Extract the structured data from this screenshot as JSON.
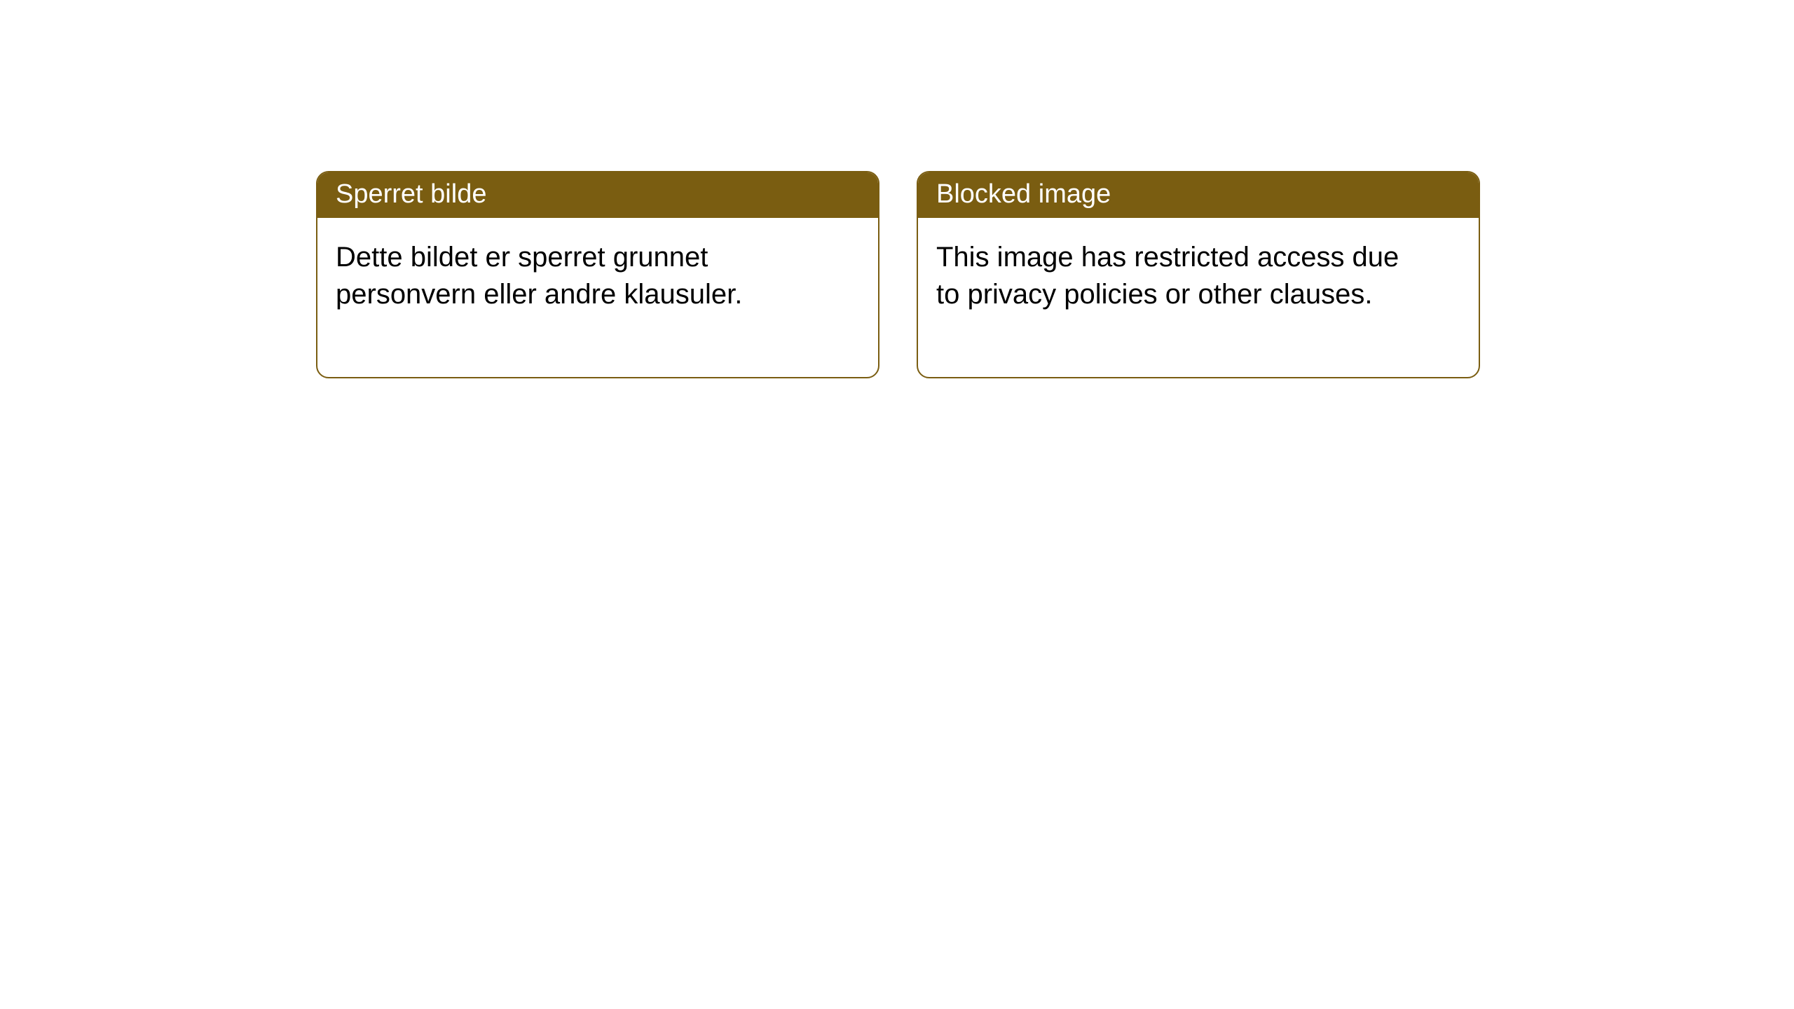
{
  "styling": {
    "header_bg": "#7a5d11",
    "header_text_color": "#ffffff",
    "border_color": "#7a5d11",
    "border_width": 2,
    "border_radius": 18,
    "card_bg": "#ffffff",
    "body_text_color": "#000000",
    "header_fontsize": 38,
    "body_fontsize": 40,
    "page_bg": "#ffffff"
  },
  "cards": {
    "norwegian": {
      "title": "Sperret bilde",
      "body": "Dette bildet er sperret grunnet personvern eller andre klausuler."
    },
    "english": {
      "title": "Blocked image",
      "body": "This image has restricted access due to privacy policies or other clauses."
    }
  }
}
